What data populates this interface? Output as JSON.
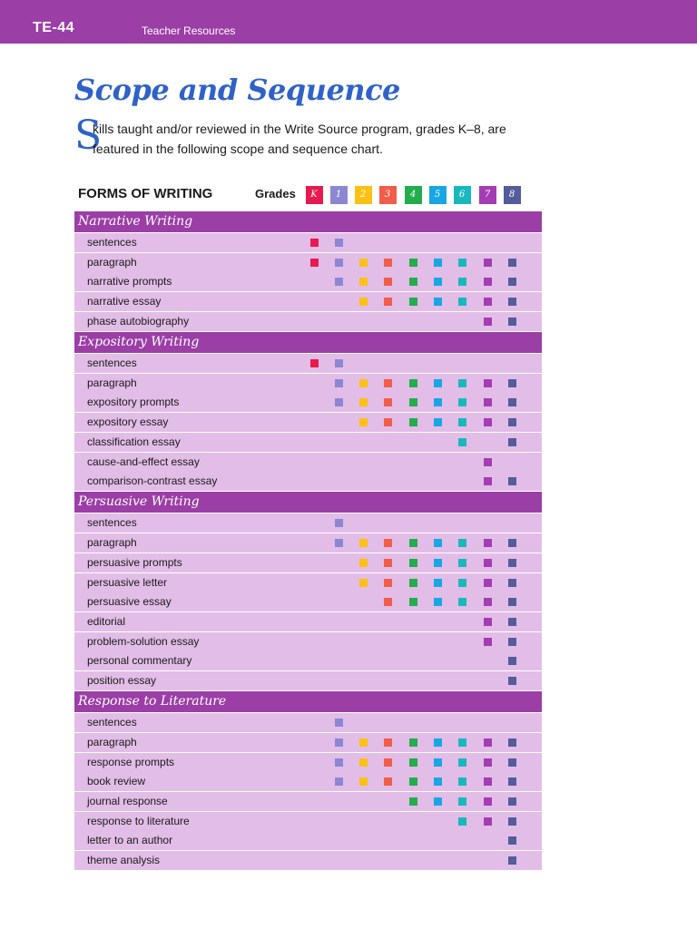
{
  "header": {
    "page_number": "TE-44",
    "section": "Teacher Resources"
  },
  "title": "Scope and Sequence",
  "intro": {
    "dropcap": "S",
    "line1": "kills taught and/or reviewed in the Write Source program, grades K–8, are",
    "line2": "featured in the following scope and sequence chart."
  },
  "chart_header": "FORMS OF WRITING",
  "grades_label": "Grades",
  "grades": [
    {
      "label": "K",
      "color": "#e8194f"
    },
    {
      "label": "1",
      "color": "#8c87d2"
    },
    {
      "label": "2",
      "color": "#fcc114"
    },
    {
      "label": "3",
      "color": "#f25d4a"
    },
    {
      "label": "4",
      "color": "#23ad4c"
    },
    {
      "label": "5",
      "color": "#18a7e4"
    },
    {
      "label": "6",
      "color": "#19b8bd"
    },
    {
      "label": "7",
      "color": "#a43cb4"
    },
    {
      "label": "8",
      "color": "#545c9c"
    }
  ],
  "sections": [
    {
      "title": "Narrative Writing",
      "rows": [
        {
          "label": "sentences",
          "grades": [
            0,
            1
          ]
        },
        {
          "label": "paragraph",
          "grades": [
            0,
            1,
            2,
            3,
            4,
            5,
            6,
            7,
            8
          ]
        },
        {
          "label": "narrative prompts",
          "grades": [
            1,
            2,
            3,
            4,
            5,
            6,
            7,
            8
          ]
        },
        {
          "label": "narrative essay",
          "grades": [
            2,
            3,
            4,
            5,
            6,
            7,
            8
          ]
        },
        {
          "label": "phase autobiography",
          "grades": [
            7,
            8
          ]
        }
      ]
    },
    {
      "title": "Expository Writing",
      "rows": [
        {
          "label": "sentences",
          "grades": [
            0,
            1
          ]
        },
        {
          "label": "paragraph",
          "grades": [
            1,
            2,
            3,
            4,
            5,
            6,
            7,
            8
          ]
        },
        {
          "label": "expository prompts",
          "grades": [
            1,
            2,
            3,
            4,
            5,
            6,
            7,
            8
          ]
        },
        {
          "label": "expository essay",
          "grades": [
            2,
            3,
            4,
            5,
            6,
            7,
            8
          ]
        },
        {
          "label": "classification essay",
          "grades": [
            6,
            8
          ]
        },
        {
          "label": "cause-and-effect essay",
          "grades": [
            7
          ]
        },
        {
          "label": "comparison-contrast essay",
          "grades": [
            7,
            8
          ]
        }
      ]
    },
    {
      "title": "Persuasive Writing",
      "rows": [
        {
          "label": "sentences",
          "grades": [
            1
          ]
        },
        {
          "label": "paragraph",
          "grades": [
            1,
            2,
            3,
            4,
            5,
            6,
            7,
            8
          ]
        },
        {
          "label": "persuasive prompts",
          "grades": [
            2,
            3,
            4,
            5,
            6,
            7,
            8
          ]
        },
        {
          "label": "persuasive letter",
          "grades": [
            2,
            3,
            4,
            5,
            6,
            7,
            8
          ]
        },
        {
          "label": "persuasive essay",
          "grades": [
            3,
            4,
            5,
            6,
            7,
            8
          ]
        },
        {
          "label": "editorial",
          "grades": [
            7,
            8
          ]
        },
        {
          "label": "problem-solution essay",
          "grades": [
            7,
            8
          ]
        },
        {
          "label": "personal commentary",
          "grades": [
            8
          ]
        },
        {
          "label": "position essay",
          "grades": [
            8
          ]
        }
      ]
    },
    {
      "title": "Response to Literature",
      "rows": [
        {
          "label": "sentences",
          "grades": [
            1
          ]
        },
        {
          "label": "paragraph",
          "grades": [
            1,
            2,
            3,
            4,
            5,
            6,
            7,
            8
          ]
        },
        {
          "label": "response prompts",
          "grades": [
            1,
            2,
            3,
            4,
            5,
            6,
            7,
            8
          ]
        },
        {
          "label": "book review",
          "grades": [
            1,
            2,
            3,
            4,
            5,
            6,
            7,
            8
          ]
        },
        {
          "label": "journal response",
          "grades": [
            4,
            5,
            6,
            7,
            8
          ]
        },
        {
          "label": "response to literature",
          "grades": [
            6,
            7,
            8
          ]
        },
        {
          "label": "letter to an author",
          "grades": [
            8
          ]
        },
        {
          "label": "theme analysis",
          "grades": [
            8
          ]
        }
      ]
    }
  ]
}
